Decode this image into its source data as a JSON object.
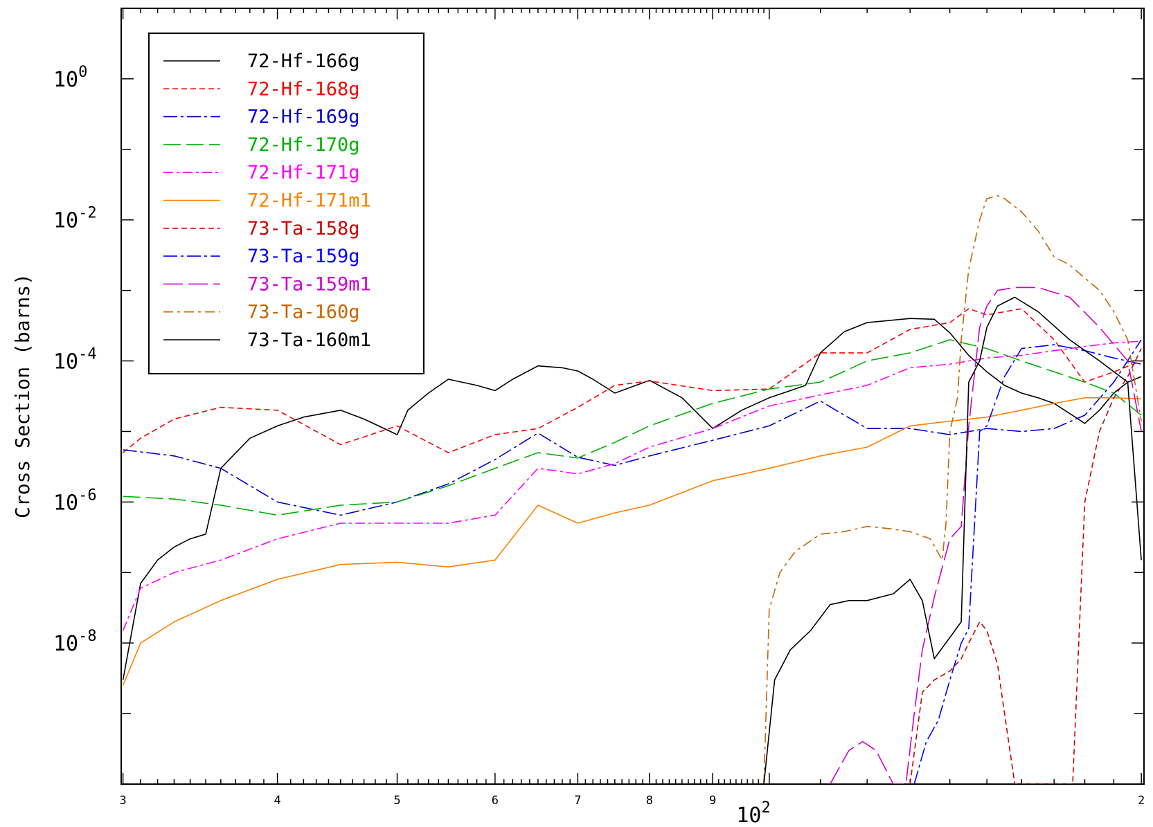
{
  "chart_data": {
    "type": "line",
    "title": "",
    "xlabel": "10^2",
    "ylabel": "Cross Section (barns)",
    "xscale": "log",
    "yscale": "log",
    "xlim": [
      29.9,
      201
    ],
    "ylim": [
      1e-10,
      10
    ],
    "x_tick_labels": [
      {
        "value": 30,
        "label": "3"
      },
      {
        "value": 40,
        "label": "4"
      },
      {
        "value": 50,
        "label": "5"
      },
      {
        "value": 60,
        "label": "6"
      },
      {
        "value": 70,
        "label": "7"
      },
      {
        "value": 80,
        "label": "8"
      },
      {
        "value": 90,
        "label": "9"
      },
      {
        "value": 200,
        "label": "2"
      }
    ],
    "x_decade_label": {
      "base": "10",
      "exp": "2"
    },
    "y_tick_labels": [
      {
        "value": 1,
        "base": "10",
        "exp": "0"
      },
      {
        "value": 0.01,
        "base": "10",
        "exp": "-2"
      },
      {
        "value": 0.0001,
        "base": "10",
        "exp": "-4"
      },
      {
        "value": 1e-06,
        "base": "10",
        "exp": "-6"
      },
      {
        "value": 1e-08,
        "base": "10",
        "exp": "-8"
      }
    ],
    "grid": false,
    "legend_position": "top-left",
    "series": [
      {
        "name": "72-Hf-166g",
        "color": "#000000",
        "dash": "solid",
        "x": [
          30,
          31,
          32,
          33,
          34,
          35,
          36,
          38,
          40,
          42,
          45,
          47,
          50,
          51,
          53,
          55,
          58,
          60,
          62,
          65,
          68,
          70,
          72,
          75,
          78,
          80,
          85,
          90,
          95,
          100,
          107,
          110,
          115,
          120,
          130,
          136,
          140,
          145,
          150,
          155,
          160,
          165,
          170,
          175,
          180,
          185,
          190,
          195,
          200
        ],
        "y": [
          3e-09,
          7e-08,
          1.5e-07,
          2.3e-07,
          3e-07,
          3.5e-07,
          3e-06,
          8e-06,
          1.2e-05,
          1.6e-05,
          2e-05,
          1.5e-05,
          9e-06,
          2e-05,
          3.5e-05,
          5.5e-05,
          4.5e-05,
          3.8e-05,
          5.5e-05,
          8.5e-05,
          8e-05,
          7.2e-05,
          5.5e-05,
          3.5e-05,
          4.5e-05,
          5.3e-05,
          3e-05,
          1.1e-05,
          2e-05,
          3e-05,
          4.5e-05,
          0.00013,
          0.00026,
          0.00035,
          0.0004,
          0.00039,
          0.00025,
          0.00012,
          7e-05,
          4.5e-05,
          3.5e-05,
          3e-05,
          2.5e-05,
          1.8e-05,
          1.3e-05,
          2e-05,
          3.5e-05,
          5e-05,
          6e-05
        ]
      },
      {
        "name": "72-Hf-168g",
        "color": "#ff0000",
        "dash": "8,5",
        "x": [
          30,
          31,
          33,
          36,
          40,
          45,
          50,
          55,
          60,
          65,
          70,
          75,
          80,
          90,
          100,
          110,
          120,
          130,
          140,
          145,
          150,
          160,
          170,
          180,
          190,
          200
        ],
        "y": [
          5e-06,
          8e-06,
          1.5e-05,
          2.2e-05,
          2e-05,
          6.5e-06,
          1.2e-05,
          5e-06,
          9e-06,
          1.1e-05,
          2.2e-05,
          4.5e-05,
          5.2e-05,
          3.8e-05,
          4e-05,
          0.00013,
          0.00013,
          0.00028,
          0.00035,
          0.00055,
          0.00045,
          0.00055,
          0.0002,
          5e-05,
          7e-05,
          0.0001
        ]
      },
      {
        "name": "72-Hf-169g",
        "color": "#0000d0",
        "dash": "20,5,4,5",
        "x": [
          30,
          33,
          36,
          40,
          45,
          50,
          55,
          60,
          65,
          70,
          75,
          80,
          90,
          100,
          110,
          120,
          130,
          140,
          150,
          160,
          170,
          180,
          190,
          200
        ],
        "y": [
          5.5e-06,
          4.5e-06,
          3e-06,
          1e-06,
          6.5e-07,
          1e-06,
          1.8e-06,
          4e-06,
          9.5e-06,
          4.3e-06,
          3.3e-06,
          4.5e-06,
          7.5e-06,
          1.2e-05,
          2.7e-05,
          1.1e-05,
          1.1e-05,
          9e-06,
          1.1e-05,
          1e-05,
          1.1e-05,
          1.7e-05,
          5e-05,
          0.0002
        ]
      },
      {
        "name": "72-Hf-170g",
        "color": "#00b000",
        "dash": "25,8",
        "x": [
          30,
          33,
          36,
          40,
          45,
          50,
          55,
          60,
          65,
          70,
          75,
          80,
          90,
          100,
          110,
          120,
          130,
          140,
          150,
          160,
          170,
          180,
          190,
          200
        ],
        "y": [
          1.2e-06,
          1.1e-06,
          9e-07,
          6.5e-07,
          9e-07,
          1e-06,
          1.7e-06,
          3e-06,
          5e-06,
          4.2e-06,
          7e-06,
          1.2e-05,
          2.5e-05,
          4e-05,
          5e-05,
          0.0001,
          0.00013,
          0.0002,
          0.00015,
          0.0001,
          7e-05,
          5e-05,
          3.5e-05,
          1.7e-05
        ]
      },
      {
        "name": "72-Hf-171g",
        "color": "#ff00ff",
        "dash": "14,5,4,5",
        "x": [
          30,
          31,
          33,
          36,
          40,
          45,
          50,
          55,
          60,
          65,
          70,
          75,
          80,
          90,
          100,
          110,
          120,
          130,
          140,
          150,
          160,
          170,
          180,
          190,
          200
        ],
        "y": [
          1.5e-08,
          6e-08,
          1e-07,
          1.5e-07,
          3e-07,
          5e-07,
          5e-07,
          5e-07,
          6.5e-07,
          3e-06,
          2.5e-06,
          3.5e-06,
          6e-06,
          1.1e-05,
          2.3e-05,
          3.3e-05,
          4.5e-05,
          8e-05,
          9e-05,
          0.00011,
          0.00012,
          0.00014,
          0.00016,
          0.00018,
          0.00019
        ]
      },
      {
        "name": "72-Hf-171m1",
        "color": "#ff8000",
        "dash": "solid",
        "x": [
          30,
          31,
          33,
          36,
          40,
          45,
          50,
          55,
          60,
          65,
          70,
          75,
          80,
          90,
          100,
          110,
          120,
          130,
          140,
          150,
          160,
          170,
          180,
          190,
          200
        ],
        "y": [
          2.5e-09,
          1e-08,
          2e-08,
          4e-08,
          8e-08,
          1.3e-07,
          1.4e-07,
          1.2e-07,
          1.5e-07,
          9e-07,
          5e-07,
          7e-07,
          9e-07,
          2e-06,
          3e-06,
          4.5e-06,
          6e-06,
          1.2e-05,
          1.4e-05,
          1.6e-05,
          2e-05,
          2.5e-05,
          3e-05,
          3e-05,
          2.9e-05
        ]
      },
      {
        "name": "73-Ta-158g",
        "color": "#cc0000",
        "dash": "8,5",
        "x": [
          130,
          133,
          136,
          140,
          143,
          145,
          148,
          150,
          153,
          155,
          158,
          160,
          170,
          176,
          177,
          180,
          185,
          190,
          195,
          200
        ],
        "y": [
          1e-10,
          2e-09,
          3e-09,
          4e-09,
          6e-09,
          1e-08,
          2e-08,
          1.5e-08,
          5e-09,
          1e-09,
          1e-10,
          1e-10,
          1e-10,
          1e-10,
          1e-09,
          1e-06,
          1e-05,
          3e-05,
          6e-05,
          0.00015
        ]
      },
      {
        "name": "73-Ta-159g",
        "color": "#0000ff",
        "dash": "20,5,4,5",
        "x": [
          131,
          134,
          137,
          140,
          143,
          145,
          148,
          150,
          155,
          160,
          170,
          180,
          190,
          200
        ],
        "y": [
          1e-10,
          4e-10,
          8e-10,
          3e-09,
          1e-08,
          1.6e-08,
          1e-05,
          1.2e-05,
          6e-05,
          0.00015,
          0.00017,
          0.00014,
          0.00011,
          9e-05
        ]
      },
      {
        "name": "73-Ta-159m1",
        "color": "#d000d0",
        "dash": "28,8",
        "x": [
          112,
          116,
          119,
          122,
          126,
          129,
          131,
          133,
          136,
          140,
          143,
          145,
          148,
          150,
          153,
          158,
          165,
          175,
          185,
          195,
          200
        ],
        "y": [
          1e-10,
          3e-10,
          4e-10,
          3e-10,
          1e-10,
          1e-10,
          1e-09,
          8e-09,
          4.5e-08,
          3e-07,
          4.5e-07,
          1.2e-05,
          0.0003,
          0.0006,
          0.001,
          0.0011,
          0.0011,
          0.0008,
          0.0003,
          0.0001,
          1e-05
        ]
      },
      {
        "name": "73-Ta-160g",
        "color": "#c86400",
        "dash": "14,6,4,6",
        "x": [
          99,
          100,
          102,
          105,
          110,
          115,
          120,
          125,
          130,
          135,
          138,
          139,
          140,
          142,
          143,
          145,
          148,
          150,
          153,
          155,
          160,
          165,
          170,
          175,
          180,
          185,
          190,
          195,
          200
        ],
        "y": [
          1e-10,
          3e-08,
          1e-07,
          2e-07,
          3.5e-07,
          3.8e-07,
          4.5e-07,
          4.2e-07,
          3.8e-07,
          3e-07,
          1.5e-07,
          5e-07,
          1e-05,
          3e-05,
          0.0002,
          0.002,
          0.01,
          0.02,
          0.022,
          0.02,
          0.013,
          0.007,
          0.003,
          0.0023,
          0.0015,
          0.001,
          0.0005,
          0.0002,
          1.4e-05
        ]
      },
      {
        "name": "73-Ta-160m1",
        "color": "#000000",
        "dash": "solid",
        "x": [
          99,
          101,
          104,
          108,
          112,
          116,
          120,
          126,
          130,
          133,
          136,
          140,
          143,
          145,
          148,
          150,
          153,
          158,
          165,
          175,
          185,
          195,
          200
        ],
        "y": [
          1e-10,
          3e-09,
          8e-09,
          1.5e-08,
          3.5e-08,
          4e-08,
          4e-08,
          5e-08,
          8e-08,
          4e-08,
          6e-09,
          1.2e-08,
          2e-08,
          5e-05,
          0.0001,
          0.0003,
          0.0006,
          0.0008,
          0.0005,
          0.0002,
          0.0001,
          5e-05,
          1.5e-07
        ]
      }
    ]
  }
}
